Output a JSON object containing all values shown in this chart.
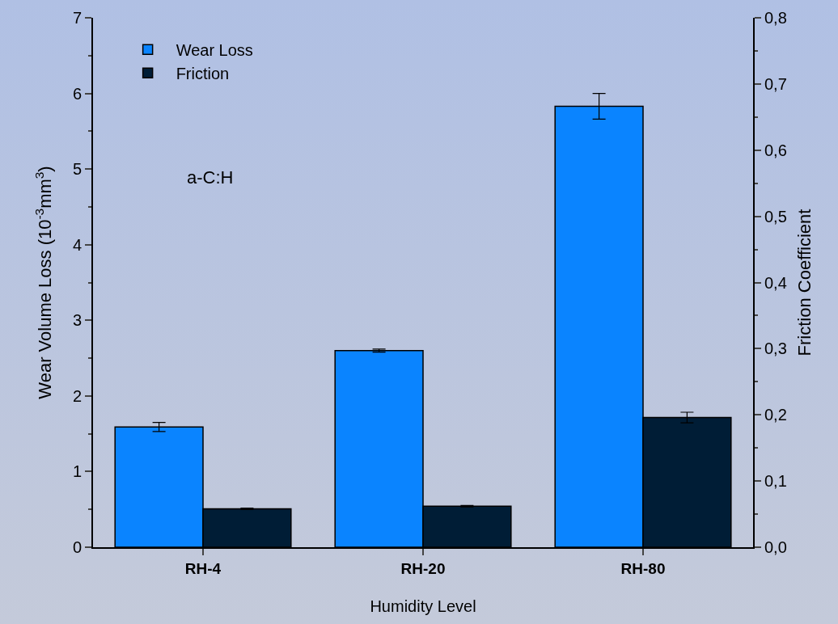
{
  "chart_data": {
    "type": "bar",
    "categories": [
      "RH-4",
      "RH-20",
      "RH-80"
    ],
    "series": [
      {
        "name": "Wear Loss",
        "color": "#0a84ff",
        "values": [
          1.59,
          2.6,
          5.83
        ],
        "errors": [
          0.06,
          0.02,
          0.17
        ]
      },
      {
        "name": "Friction",
        "color": "#001d36",
        "axis": "y2",
        "values": [
          0.058,
          0.062,
          0.196
        ],
        "errors": [
          0.001,
          0.001,
          0.008
        ]
      }
    ],
    "xlabel": "Humidity Level",
    "ylabel": "Wear Volume Loss (10$^{-3}$mm$^{3}$)",
    "y2label": "Friction Coefficient",
    "ylim": [
      0,
      7
    ],
    "yticks": [
      0,
      1,
      2,
      3,
      4,
      5,
      6,
      7
    ],
    "y2lim": [
      0,
      0.8
    ],
    "y2ticks": [
      {
        "value": 0,
        "label": "0,0"
      },
      {
        "value": 0.1,
        "label": "0,1"
      },
      {
        "value": 0.2,
        "label": "0,2"
      },
      {
        "value": 0.3,
        "label": "0,3"
      },
      {
        "value": 0.4,
        "label": "0,4"
      },
      {
        "value": 0.5,
        "label": "0,5"
      },
      {
        "value": 0.6,
        "label": "0,6"
      },
      {
        "value": 0.7,
        "label": "0,7"
      },
      {
        "value": 0.8,
        "label": "0,8"
      }
    ],
    "annotations": [
      "a-C:H"
    ],
    "legend": "top left",
    "grid": false
  }
}
